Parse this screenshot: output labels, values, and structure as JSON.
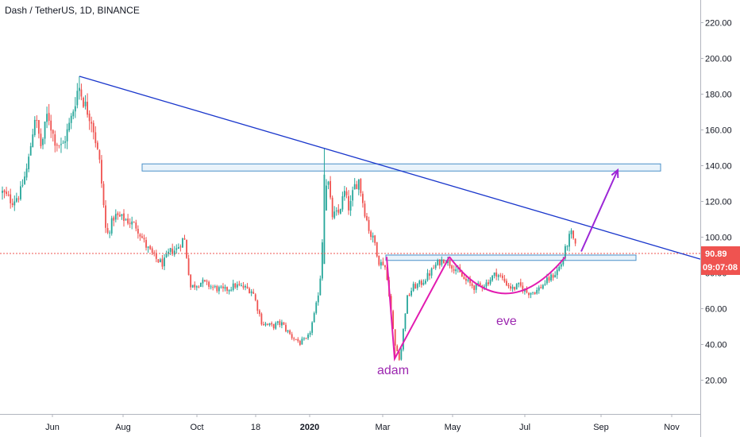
{
  "header": {
    "title": "Dash / TetherUS, 1D, BINANCE"
  },
  "chart_data": {
    "type": "candlestick",
    "title": "Dash / TetherUS, 1D, BINANCE",
    "ylim": [
      10,
      232
    ],
    "x_tick_labels": [
      "Jun",
      "Aug",
      "Oct",
      "18",
      "2020",
      "Mar",
      "May",
      "Jul",
      "Sep",
      "Nov"
    ],
    "y_tick_values": [
      20,
      40,
      60,
      80,
      100,
      120,
      140,
      160,
      180,
      200,
      220
    ],
    "y_tick_labels": [
      "20.00",
      "40.00",
      "60.00",
      "80.00",
      "100.00",
      "120.00",
      "140.00",
      "160.00",
      "180.00",
      "200.00",
      "220.00"
    ],
    "price_label": {
      "value": "90.89",
      "countdown": "09:07:08",
      "price": 90.89
    },
    "colors": {
      "up": "#26a69a",
      "down": "#ef5350",
      "trendline": "#1a37cc",
      "rect_fill": "#e3f0fa",
      "rect_border": "#4a90c8",
      "pattern": "#e21bb0",
      "arrow": "#9c27d6",
      "price_tag": "#ef5350"
    },
    "key_points": [
      {
        "label": "high",
        "price": 190
      },
      {
        "label": "spike",
        "price": 150
      },
      {
        "label": "low",
        "price": 32
      },
      {
        "label": "neckline",
        "price": 89
      }
    ],
    "annotations": {
      "adam_label": "adam",
      "eve_label": "eve"
    },
    "resistance_zone": [
      137,
      141
    ],
    "neckline_zone": [
      87,
      90
    ]
  },
  "candles": []
}
